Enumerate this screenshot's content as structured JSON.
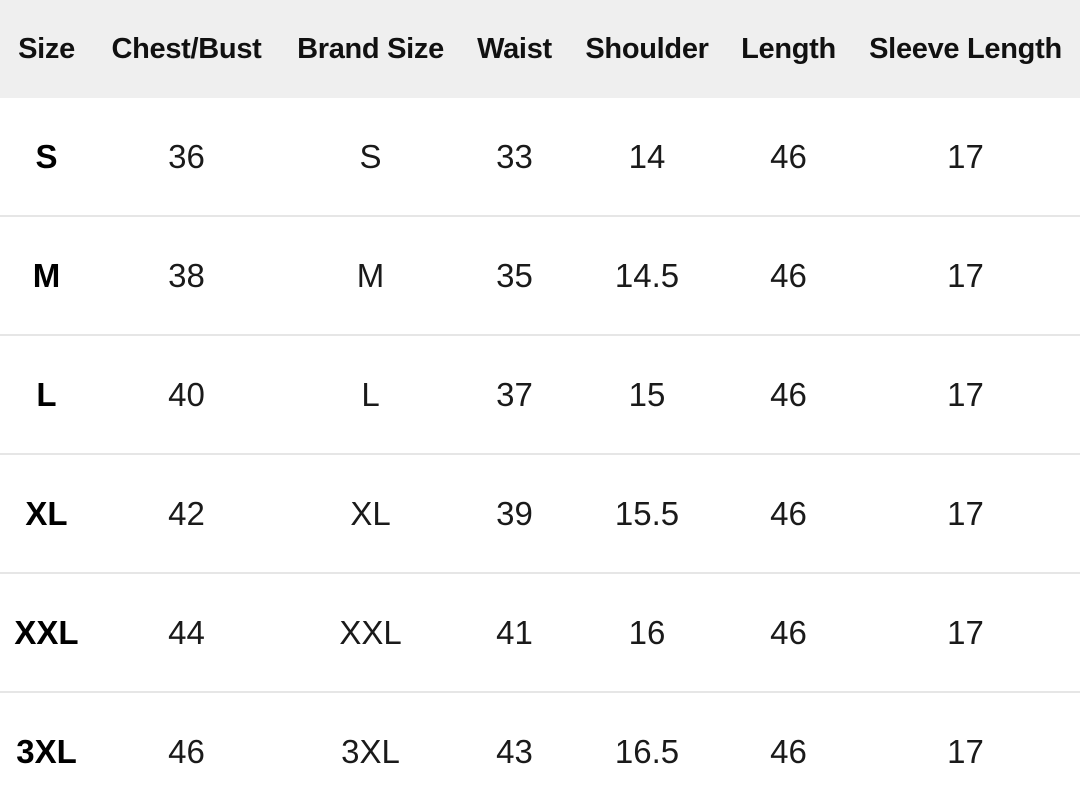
{
  "table": {
    "headers": [
      "Size",
      "Chest/Bust",
      "Brand Size",
      "Waist",
      "Shoulder",
      "Length",
      "Sleeve Length"
    ],
    "rows": [
      [
        "S",
        "36",
        "S",
        "33",
        "14",
        "46",
        "17"
      ],
      [
        "M",
        "38",
        "M",
        "35",
        "14.5",
        "46",
        "17"
      ],
      [
        "L",
        "40",
        "L",
        "37",
        "15",
        "46",
        "17"
      ],
      [
        "XL",
        "42",
        "XL",
        "39",
        "15.5",
        "46",
        "17"
      ],
      [
        "XXL",
        "44",
        "XXL",
        "41",
        "16",
        "46",
        "17"
      ],
      [
        "3XL",
        "46",
        "3XL",
        "43",
        "16.5",
        "46",
        "17"
      ]
    ]
  },
  "colors": {
    "header_background": "#efefef",
    "row_divider": "#e6e6e6",
    "text": "#141414"
  }
}
